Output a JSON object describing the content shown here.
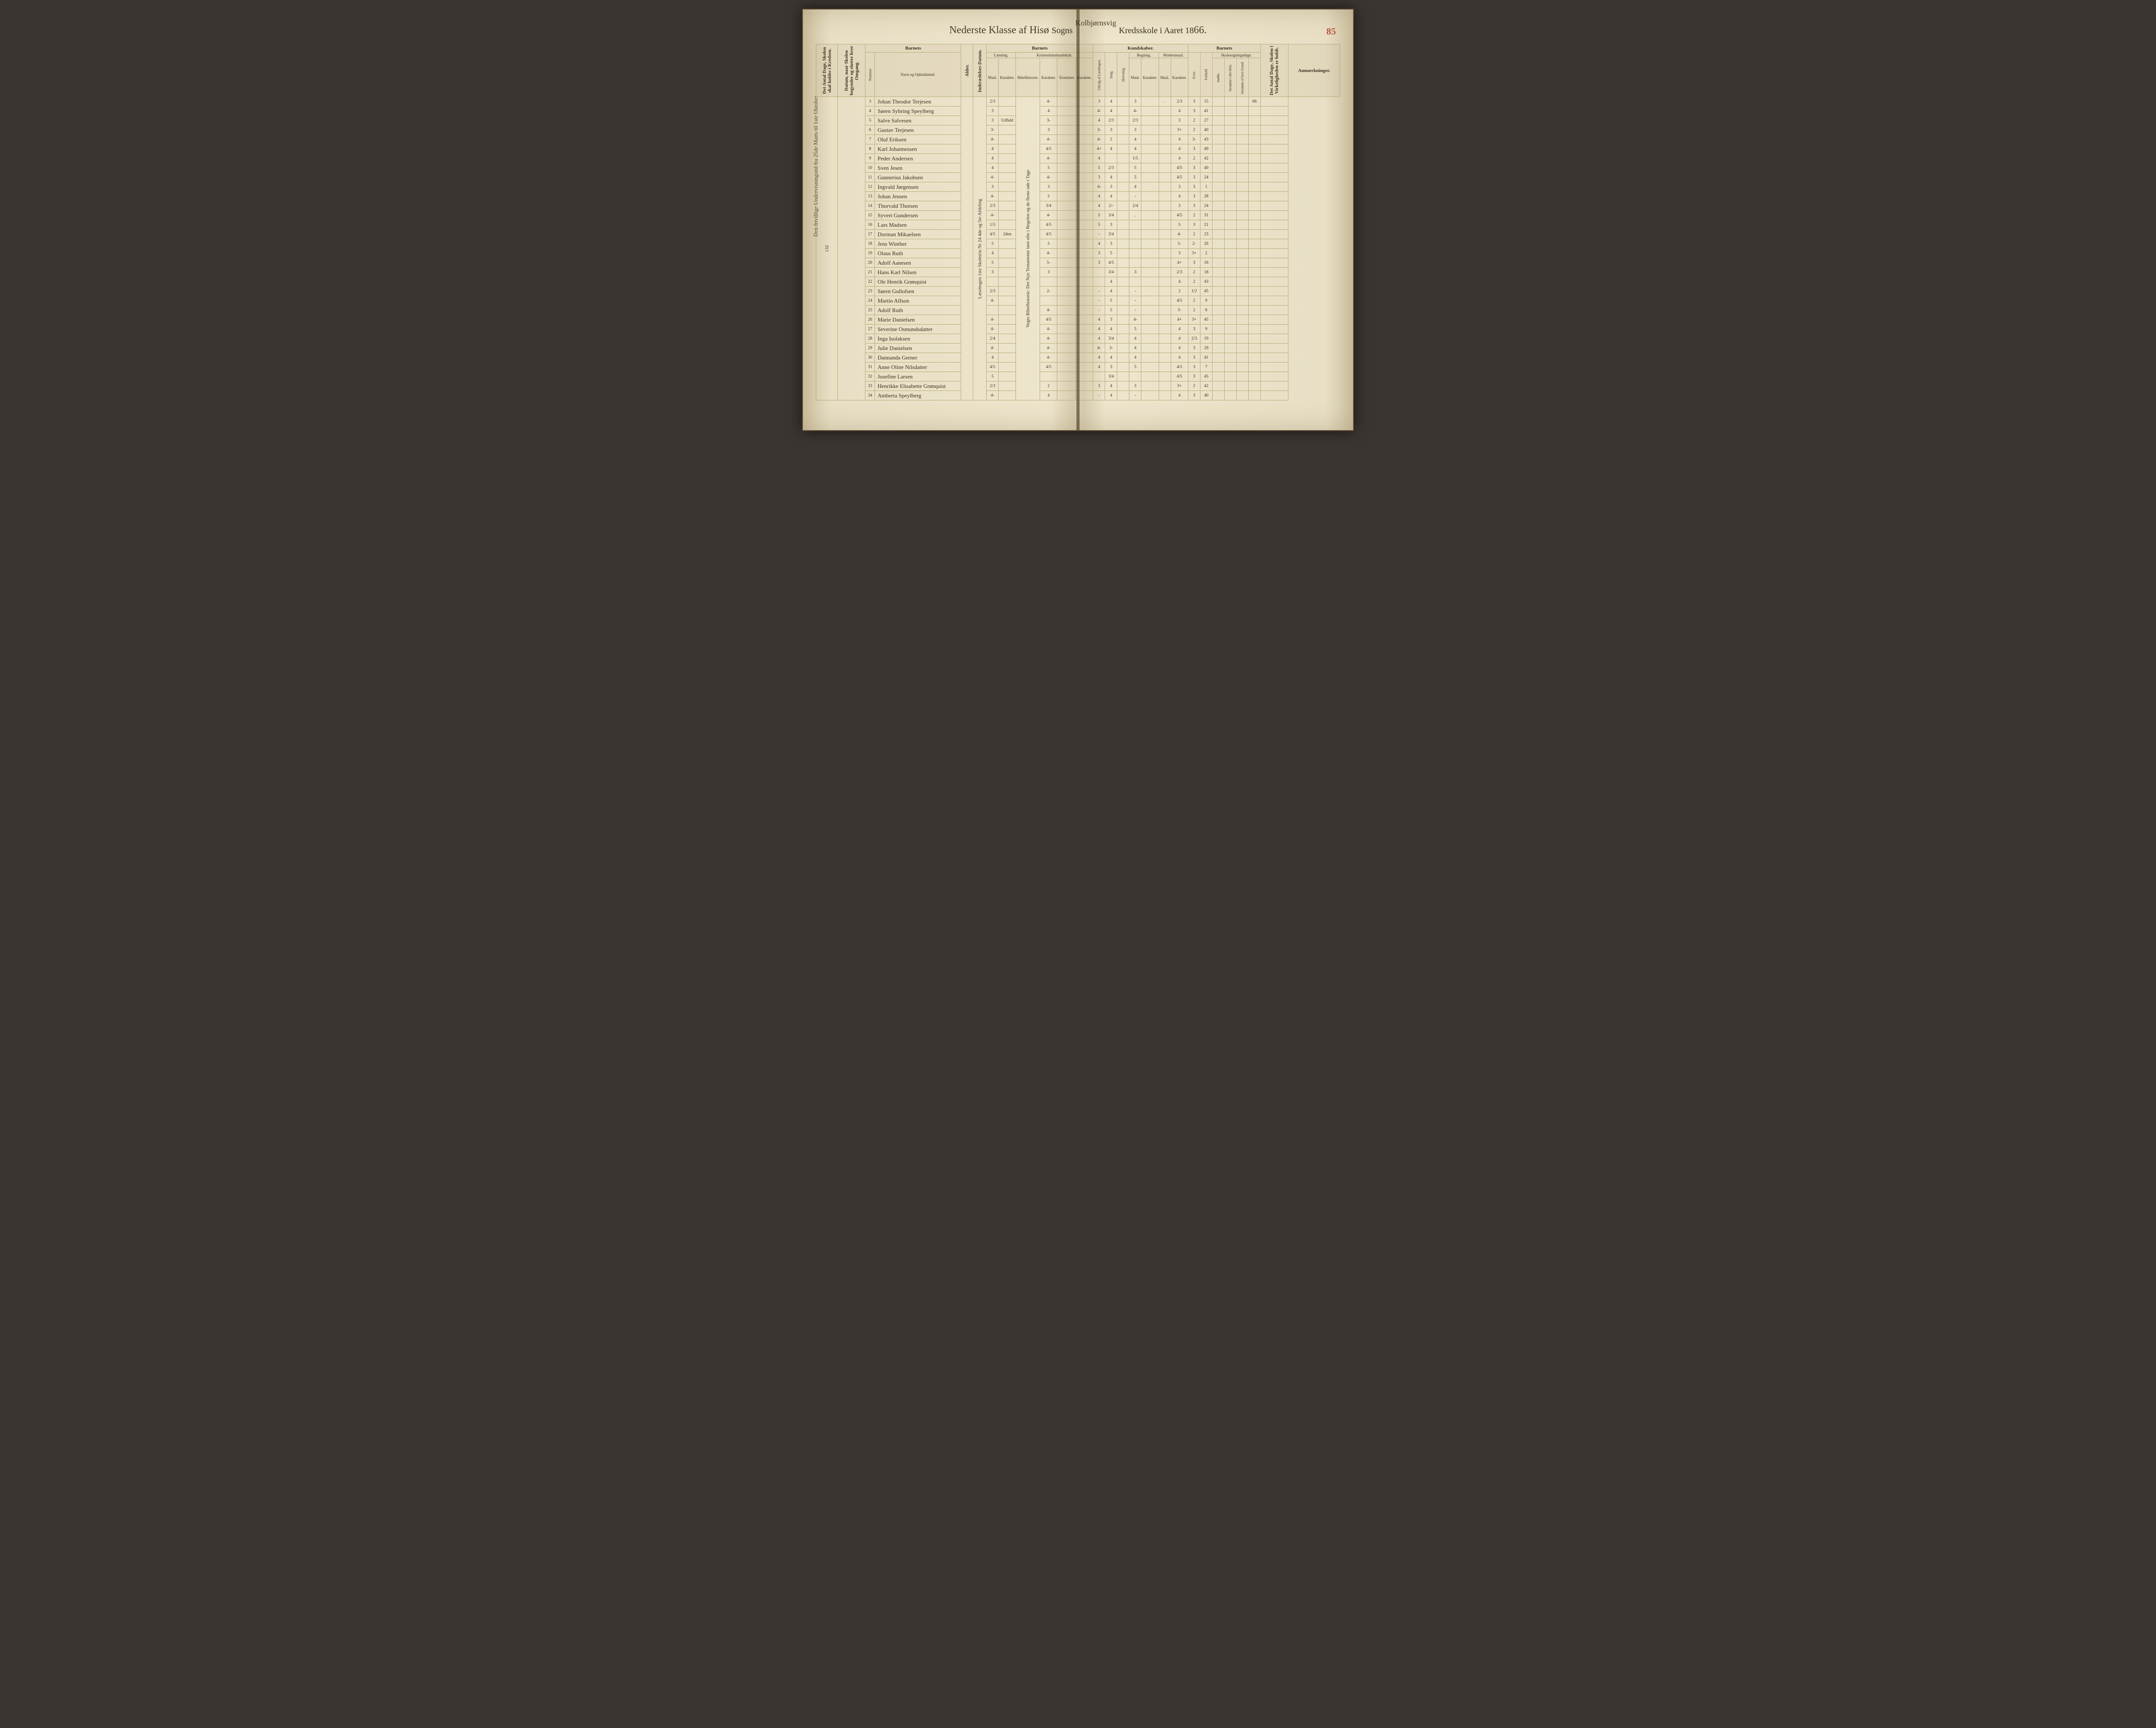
{
  "pageNumber": "85",
  "header": {
    "scriptLeft": "Nederste Klasse af",
    "scriptMid": "Hisø",
    "printedSogns": "Sogns",
    "scriptTop": "Kolbjørnsvig",
    "printedRight": "Kredsskole i Aaret 18",
    "year": "66."
  },
  "sideNote": "Den frivillige Undervisningstid fra 25de Marts til 1ste Oktober",
  "columns": {
    "groupBarnets1": "Barnets",
    "groupBarnets2": "Barnets",
    "groupKundskaber": "Kundskaber.",
    "groupBarnets3": "Barnets",
    "antalDage": "Det Antal Dage, Skolen skal holdes i Kredsen.",
    "datum": "Datum, naar Skolen begynder og slutter hver Omgang.",
    "nummer": "Nummer.",
    "navn": "Navn og Opholdssted.",
    "alder": "Alder.",
    "indtrad": "Indtrædelses-Datum.",
    "laesning": "Læsning.",
    "kristendom": "Kristendomskundskab.",
    "bibel": "Bibelhistorie.",
    "troes": "Troeslære",
    "udvalg": "Udvalg af Læsebogen.",
    "sang": "Sang.",
    "skriv": "Skrivning.",
    "regning": "Regning.",
    "modersmaal": "Modersmaal.",
    "maal": "Maal.",
    "karakter": "Karakter.",
    "evne": "Evne.",
    "forhold": "Forhold",
    "skolesog": "Skolesogningsdage.",
    "modte": "mødte.",
    "forsomte1": "forsømte i det Hele.",
    "forsomte2": "forsømte af lovi Grund.",
    "antalDage2": "Det Antal Dage, Skolen i Virkeligheden er holdt.",
    "anmark": "Anmærkninger."
  },
  "leftMargin": "132",
  "verticalNote1": "Læsebogen 1ste Skoletrin Nr 24 4de og 5te Afdeling",
  "verticalNote2": "Vogts Bibelhistorie: Det Nye Testamente læst ofte i Regelen og de fleste ude i Tage",
  "verticalNote3": "2den",
  "rows": [
    {
      "num": "3",
      "name": "Johan Theodor Terjesen",
      "laes": "2/3",
      "l2": "",
      "bib": "4-",
      "kr1": "",
      "kr2": "",
      "kr3": "3",
      "sang": "4",
      "skr": "",
      "reg": "3",
      "reg2": "",
      "mm": ".",
      "mm2": "2/3",
      "ev": "3",
      "fh": "15",
      "m": "",
      "f1": "",
      "ad": "66"
    },
    {
      "num": "4",
      "name": "Søren Sybring Speylberg",
      "laes": "3",
      "l2": "",
      "bib": "4",
      "kr1": "",
      "kr2": "",
      "kr3": "4-",
      "sang": "4",
      "skr": "",
      "reg": "4-",
      "reg2": "",
      "mm": "",
      "mm2": "4",
      "ev": "3",
      "fh": "41",
      "m": "",
      "f1": "",
      "ad": ""
    },
    {
      "num": "5",
      "name": "Salve Salvesen",
      "laes": "3",
      "l2": "Udfald",
      "bib": "3-",
      "kr1": "",
      "kr2": "",
      "kr3": "4",
      "sang": "2/3",
      "skr": "",
      "reg": "2/3",
      "reg2": "",
      "mm": "",
      "mm2": "3",
      "ev": "2",
      "fh": "27",
      "m": "",
      "f1": "",
      "ad": ""
    },
    {
      "num": "6",
      "name": "Gustav Terjesen",
      "laes": "3-",
      "l2": "",
      "bib": "3",
      "kr1": "",
      "kr2": "",
      "kr3": "3-",
      "sang": "3",
      "skr": "",
      "reg": "3",
      "reg2": "",
      "mm": "",
      "mm2": "3+",
      "ev": "2",
      "fh": "40",
      "m": "",
      "f1": "",
      "ad": ""
    },
    {
      "num": "7",
      "name": "Oluf Eriksen",
      "laes": "4-",
      "l2": "",
      "bib": "4-",
      "kr1": "",
      "kr2": "",
      "kr3": "4-",
      "sang": "2",
      "skr": "",
      "reg": "4",
      "reg2": "",
      "mm": "",
      "mm2": "4",
      "ev": "3-",
      "fh": "43",
      "m": "",
      "f1": "",
      "ad": ""
    },
    {
      "num": "8",
      "name": "Karl Johannessen",
      "laes": "4",
      "l2": "",
      "bib": "4/5",
      "kr1": "-",
      "kr2": "",
      "kr3": "4+",
      "sang": "4",
      "skr": "",
      "reg": "4",
      "reg2": "",
      "mm": "",
      "mm2": "4",
      "ev": "3",
      "fh": "49",
      "m": "",
      "f1": "",
      "ad": ""
    },
    {
      "num": "9",
      "name": "Peder Andersen",
      "laes": "4",
      "l2": "",
      "bib": "4-",
      "kr1": "Regelen",
      "kr2": "",
      "kr3": "4",
      "sang": "",
      "skr": "",
      "reg": "1/5",
      "reg2": "",
      "mm": "",
      "mm2": "4",
      "ev": "2",
      "fh": "42",
      "m": "",
      "f1": "",
      "ad": ""
    },
    {
      "num": "10",
      "name": "Sven Jesen",
      "laes": "4",
      "l2": "",
      "bib": "5",
      "kr1": "",
      "kr2": "",
      "kr3": "5",
      "sang": "2/3",
      "skr": "",
      "reg": "5",
      "reg2": "",
      "mm": "",
      "mm2": "4/5",
      "ev": "3",
      "fh": "40",
      "m": "",
      "f1": "",
      "ad": ""
    },
    {
      "num": "11",
      "name": "Gunnerius Jakobsen",
      "laes": "4-",
      "l2": "",
      "bib": "4-",
      "kr1": "",
      "kr2": "",
      "kr3": "3",
      "sang": "4",
      "skr": "",
      "reg": "5",
      "reg2": "",
      "mm": "",
      "mm2": "4/5",
      "ev": "3",
      "fh": "24",
      "m": "",
      "f1": "",
      "ad": ""
    },
    {
      "num": "12",
      "name": "Ingvald Jørgensen",
      "laes": "3",
      "l2": "",
      "bib": "3",
      "kr1": "",
      "kr2": "",
      "kr3": "4-",
      "sang": "3",
      "skr": "",
      "reg": "4",
      "reg2": "",
      "mm": "",
      "mm2": "3",
      "ev": "3",
      "fh": "1",
      "m": "",
      "f1": "",
      "ad": ""
    },
    {
      "num": "13",
      "name": "Johan Jensen",
      "laes": "4-",
      "l2": "",
      "bib": "5",
      "kr1": "",
      "kr2": "",
      "kr3": "4",
      "sang": "4",
      "skr": "",
      "reg": "-",
      "reg2": "",
      "mm": "",
      "mm2": "4",
      "ev": "3",
      "fh": "28",
      "m": "",
      "f1": "",
      "ad": ""
    },
    {
      "num": "14",
      "name": "Thorvald Thorsen",
      "laes": "2/3",
      "l2": "",
      "bib": "3/4",
      "kr1": "",
      "kr2": "",
      "kr3": "4",
      "sang": "2/-",
      "skr": "",
      "reg": "2/4",
      "reg2": "",
      "mm": "",
      "mm2": "3",
      "ev": "3",
      "fh": "24",
      "m": "",
      "f1": "",
      "ad": ""
    },
    {
      "num": "15",
      "name": "Syvert Gundersen",
      "laes": "4-",
      "l2": "",
      "bib": "4-",
      "kr1": "",
      "kr2": "",
      "kr3": "5",
      "sang": "3/4",
      "skr": "",
      "reg": ".",
      "reg2": "",
      "mm": "",
      "mm2": "4/5",
      "ev": "2",
      "fh": "31",
      "m": "",
      "f1": "",
      "ad": ""
    },
    {
      "num": "16",
      "name": "Lars Madsen",
      "laes": "1/5",
      "l2": "",
      "bib": "4/5",
      "kr1": "",
      "kr2": "",
      "kr3": "5",
      "sang": "3",
      "skr": "",
      "reg": "",
      "reg2": "",
      "mm": "",
      "mm2": "5",
      "ev": "3",
      "fh": "21",
      "m": "",
      "f1": "",
      "ad": ""
    },
    {
      "num": "17",
      "name": "Dorman Mikaelsen",
      "laes": "4/5",
      "l2": "2den",
      "bib": "4/5",
      "kr1": "",
      "kr2": "",
      "kr3": "-",
      "sang": "3/4",
      "skr": "",
      "reg": "",
      "reg2": "",
      "mm": "",
      "mm2": "4-",
      "ev": "2",
      "fh": "23",
      "m": "",
      "f1": "",
      "ad": ""
    },
    {
      "num": "18",
      "name": "Jens Winther",
      "laes": "5",
      "l2": "",
      "bib": "5",
      "kr1": "",
      "kr2": "",
      "kr3": "4",
      "sang": "3",
      "skr": "",
      "reg": "",
      "reg2": "",
      "mm": "",
      "mm2": "5-",
      "ev": "2-",
      "fh": "26",
      "m": "",
      "f1": "",
      "ad": ""
    },
    {
      "num": "19",
      "name": "Olaus Ruth",
      "laes": "4",
      "l2": "",
      "bib": "4-",
      "kr1": "",
      "kr2": "",
      "kr3": "3",
      "sang": "5",
      "skr": "",
      "reg": "",
      "reg2": "",
      "mm": "",
      "mm2": "3",
      "ev": "3+",
      "fh": "2",
      "m": "",
      "f1": "",
      "ad": ""
    },
    {
      "num": "20",
      "name": "Adolf Aanesen",
      "laes": "5",
      "l2": "",
      "bib": "5-",
      "kr1": "",
      "kr2": "",
      "kr3": "3",
      "sang": "4/5",
      "skr": "",
      "reg": "",
      "reg2": "",
      "mm": "",
      "mm2": "4+",
      "ev": "3",
      "fh": "16",
      "m": "",
      "f1": "",
      "ad": ""
    },
    {
      "num": "21",
      "name": "Hans Karl Nilsen",
      "laes": "3",
      "l2": "",
      "bib": "3",
      "kr1": "",
      "kr2": "",
      "kr3": "",
      "sang": "3/4",
      "skr": "",
      "reg": "3",
      "reg2": "",
      "mm": "",
      "mm2": "2/3",
      "ev": "2",
      "fh": "18",
      "m": "",
      "f1": "",
      "ad": ""
    },
    {
      "num": "22",
      "name": "Ole Henrik Grønquist",
      "laes": "",
      "l2": "",
      "bib": "",
      "kr1": "",
      "kr2": "",
      "kr3": "",
      "sang": "4",
      "skr": "",
      "reg": "",
      "reg2": "",
      "mm": "",
      "mm2": "4",
      "ev": "2",
      "fh": "43",
      "m": "",
      "f1": "",
      "ad": ""
    },
    {
      "num": "23",
      "name": "Søren Gullofsen",
      "laes": "2/3",
      "l2": "",
      "bib": "2-",
      "kr1": "Katekismens",
      "kr2": "",
      "kr3": "-",
      "sang": "4",
      "skr": "",
      "reg": "-",
      "reg2": "",
      "mm": "",
      "mm2": "2",
      "ev": "1/2",
      "fh": "45",
      "m": "",
      "f1": "",
      "ad": ""
    },
    {
      "num": "24",
      "name": "Martin Alfson",
      "laes": "4-",
      "l2": "",
      "bib": "",
      "kr1": "",
      "kr2": "",
      "kr3": "-",
      "sang": "5",
      "skr": "",
      "reg": "-",
      "reg2": "",
      "mm": "",
      "mm2": "4/5",
      "ev": "2",
      "fh": "9",
      "m": "",
      "f1": "",
      "ad": ""
    },
    {
      "num": "25",
      "name": "Adolf Ruth",
      "laes": "",
      "l2": "",
      "bib": "4-",
      "kr1": "",
      "kr2": "",
      "kr3": "-",
      "sang": "5",
      "skr": "",
      "reg": "-",
      "reg2": "",
      "mm": "",
      "mm2": "3-",
      "ev": "2",
      "fh": "6",
      "m": "",
      "f1": "",
      "ad": ""
    },
    {
      "num": "26",
      "name": "Marie Danielsen",
      "laes": "4-",
      "l2": "",
      "bib": "4/5",
      "kr1": "",
      "kr2": "",
      "kr3": "4",
      "sang": "3",
      "skr": "",
      "reg": "4-",
      "reg2": "",
      "mm": "",
      "mm2": "4+",
      "ev": "3+",
      "fh": "45",
      "m": "",
      "f1": "",
      "ad": ""
    },
    {
      "num": "27",
      "name": "Severine Osmundsdatter",
      "laes": "4-",
      "l2": "",
      "bib": "4-",
      "kr1": "",
      "kr2": "",
      "kr3": "4",
      "sang": "4",
      "skr": "",
      "reg": "5",
      "reg2": "",
      "mm": "",
      "mm2": "4",
      "ev": "3",
      "fh": "9",
      "m": "",
      "f1": "",
      "ad": ""
    },
    {
      "num": "28",
      "name": "Inga Isolaksen",
      "laes": "2/4",
      "l2": "",
      "bib": "4-",
      "kr1": "",
      "kr2": "",
      "kr3": "4",
      "sang": "3/4",
      "skr": "",
      "reg": "4",
      "reg2": "",
      "mm": "",
      "mm2": "4",
      "ev": "2/3",
      "fh": "19",
      "m": "",
      "f1": "",
      "ad": ""
    },
    {
      "num": "29",
      "name": "Julie Danielsen",
      "laes": "4-",
      "l2": "",
      "bib": "4-",
      "kr1": "",
      "kr2": "",
      "kr3": "4-",
      "sang": "3-",
      "skr": "",
      "reg": "4",
      "reg2": "",
      "mm": "",
      "mm2": "4",
      "ev": "3",
      "fh": "29",
      "m": "",
      "f1": "",
      "ad": ""
    },
    {
      "num": "30",
      "name": "Dannanda Gerner",
      "laes": "4",
      "l2": "",
      "bib": "4-",
      "kr1": "",
      "kr2": "",
      "kr3": "4",
      "sang": "4",
      "skr": "",
      "reg": "4",
      "reg2": "",
      "mm": "",
      "mm2": "4",
      "ev": "3",
      "fh": "41",
      "m": "",
      "f1": "",
      "ad": ""
    },
    {
      "num": "31",
      "name": "Anne Oline Nilsdatter",
      "laes": "4/5",
      "l2": "",
      "bib": "4/5",
      "kr1": "",
      "kr2": "",
      "kr3": "4",
      "sang": "3",
      "skr": "",
      "reg": "5",
      "reg2": "",
      "mm": "",
      "mm2": "4/5",
      "ev": "3",
      "fh": "7",
      "m": "",
      "f1": "",
      "ad": ""
    },
    {
      "num": "32",
      "name": "Josefine Larsen",
      "laes": "5",
      "l2": "",
      "bib": "",
      "kr1": "",
      "kr2": "",
      "kr3": "",
      "sang": "3/4",
      "skr": "",
      "reg": "",
      "reg2": "",
      "mm": "",
      "mm2": "4/5",
      "ev": "3",
      "fh": "45",
      "m": "",
      "f1": "",
      "ad": ""
    },
    {
      "num": "33",
      "name": "Henrikke Elisabette Grønquist",
      "laes": "2/3",
      "l2": "",
      "bib": "2",
      "kr1": "",
      "kr2": "",
      "kr3": "3",
      "sang": "4",
      "skr": "",
      "reg": "3",
      "reg2": "",
      "mm": "",
      "mm2": "3+",
      "ev": "2",
      "fh": "42",
      "m": "",
      "f1": "",
      "ad": ""
    },
    {
      "num": "34",
      "name": "Amberta Speylberg",
      "laes": "4-",
      "l2": "",
      "bib": "4",
      "kr1": "",
      "kr2": "",
      "kr3": "-",
      "sang": "4",
      "skr": "",
      "reg": "-",
      "reg2": "",
      "mm": "",
      "mm2": "4",
      "ev": "3",
      "fh": "40",
      "m": "",
      "f1": "",
      "ad": ""
    }
  ]
}
